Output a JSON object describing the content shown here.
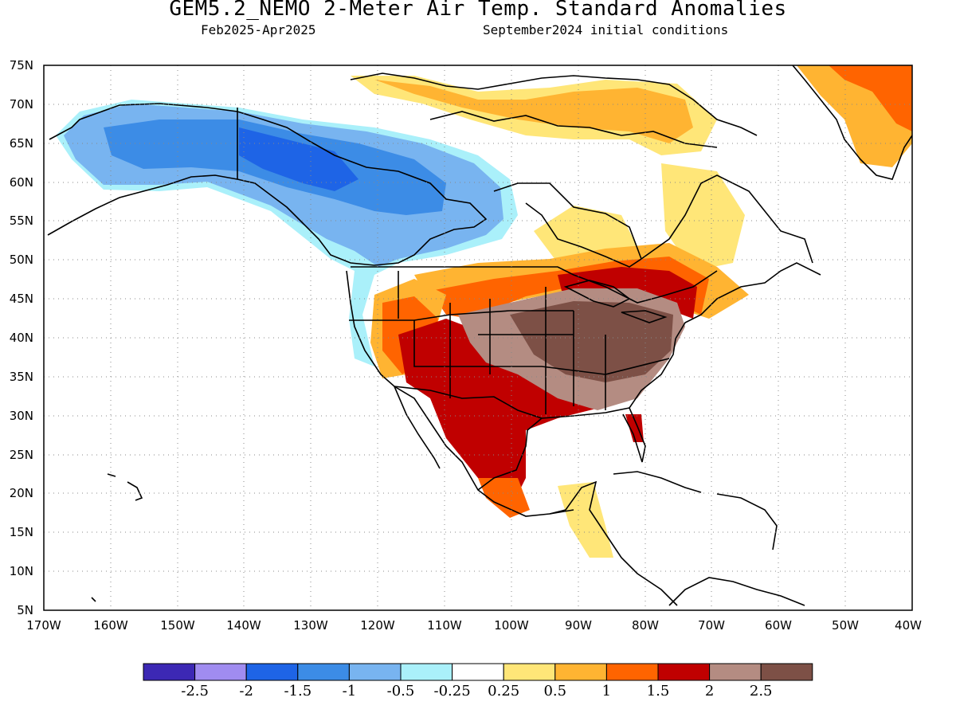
{
  "title": "GEM5.2_NEMO 2-Meter Air Temp. Standard Anomalies",
  "subtitle_left": "Feb2025-Apr2025",
  "subtitle_right": "September2024 initial conditions",
  "lat_labels": [
    "75N",
    "70N",
    "65N",
    "60N",
    "55N",
    "50N",
    "45N",
    "40N",
    "35N",
    "30N",
    "25N",
    "20N",
    "15N",
    "10N",
    "5N"
  ],
  "lon_labels": [
    "170W",
    "160W",
    "150W",
    "140W",
    "130W",
    "120W",
    "110W",
    "100W",
    "90W",
    "80W",
    "70W",
    "60W",
    "50W",
    "40W"
  ],
  "colorbar": {
    "colors": [
      "#3c28b4",
      "#a08cf0",
      "#1e64e6",
      "#3c8ce6",
      "#78b4f0",
      "#aaf0fa",
      "#ffffff",
      "#ffe678",
      "#ffb432",
      "#ff6400",
      "#c00000",
      "#b48c82",
      "#7d5046"
    ],
    "labels": [
      "-2.5",
      "-2",
      "-1.5",
      "-1",
      "-0.5",
      "-0.25",
      "0.25",
      "0.5",
      "1",
      "1.5",
      "2",
      "2.5"
    ]
  }
}
